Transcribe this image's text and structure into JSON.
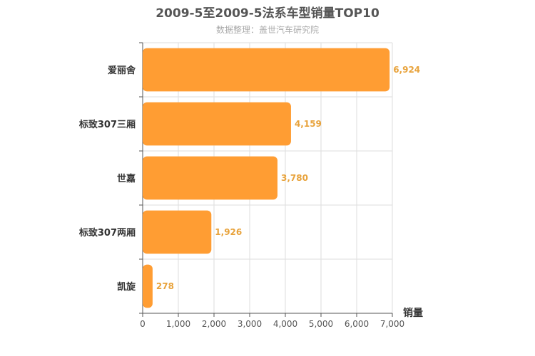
{
  "chart_data": {
    "type": "bar",
    "orientation": "horizontal",
    "title": "2009-5至2009-5法系车型销量TOP10",
    "subtitle": "数据整理：盖世汽车研究院",
    "categories": [
      "爱丽舍",
      "标致307三厢",
      "世嘉",
      "标致307两厢",
      "凯旋"
    ],
    "values": [
      6924,
      4159,
      3780,
      1926,
      278
    ],
    "value_labels": [
      "6,924",
      "4,159",
      "3,780",
      "1,926",
      "278"
    ],
    "xlabel": "销量",
    "ylabel": "",
    "xlim": [
      0,
      7000
    ],
    "x_ticks": [
      0,
      1000,
      2000,
      3000,
      4000,
      5000,
      6000,
      7000
    ],
    "x_tick_labels": [
      "0",
      "1,000",
      "2,000",
      "3,000",
      "4,000",
      "5,000",
      "6,000",
      "7,000"
    ],
    "grid": true,
    "bar_color": "#ff9d33",
    "label_color": "#e8a33c"
  }
}
